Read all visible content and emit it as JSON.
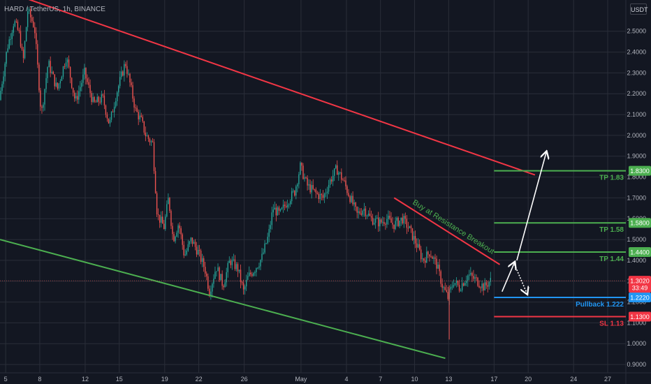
{
  "header": {
    "symbol": "HARD / TetherUS, 1h, BINANCE",
    "currency": "USDT"
  },
  "colors": {
    "background": "#131722",
    "grid": "#2a2e39",
    "up": "#26a69a",
    "down": "#ef5350",
    "resistance": "#f23645",
    "support": "#4caf50",
    "tp": "#4caf50",
    "sl": "#f23645",
    "pullback": "#2196f3",
    "arrow": "#ffffff",
    "price_tag": "#f23645",
    "axis_text": "#b2b5be"
  },
  "chart_data": {
    "type": "candlestick",
    "title": "HARD / TetherUS, 1h, BINANCE",
    "y_ticks": [
      "2.5000",
      "2.4000",
      "2.3000",
      "2.2000",
      "2.1000",
      "2.0000",
      "1.9000",
      "1.8000",
      "1.7000",
      "1.6000",
      "1.5000",
      "1.4000",
      "1.3000",
      "1.2000",
      "1.1000",
      "1.0000",
      "0.9000"
    ],
    "ylim": [
      0.86,
      2.65
    ],
    "x_ticks": [
      {
        "label": "5",
        "day": 5
      },
      {
        "label": "8",
        "day": 8
      },
      {
        "label": "12",
        "day": 12
      },
      {
        "label": "15",
        "day": 15
      },
      {
        "label": "19",
        "day": 19
      },
      {
        "label": "22",
        "day": 22
      },
      {
        "label": "26",
        "day": 26
      },
      {
        "label": "May",
        "day": 31
      },
      {
        "label": "4",
        "day": 35
      },
      {
        "label": "7",
        "day": 38
      },
      {
        "label": "10",
        "day": 41
      },
      {
        "label": "13",
        "day": 44
      },
      {
        "label": "17",
        "day": 48
      },
      {
        "label": "20",
        "day": 51
      },
      {
        "label": "24",
        "day": 55
      },
      {
        "label": "27",
        "day": 58
      }
    ],
    "xlim": [
      4.5,
      59.6
    ],
    "price_path": [
      [
        4.5,
        2.17
      ],
      [
        5.2,
        2.42
      ],
      [
        5.8,
        2.55
      ],
      [
        6.3,
        2.48
      ],
      [
        6.6,
        2.35
      ],
      [
        7.0,
        2.6
      ],
      [
        7.6,
        2.52
      ],
      [
        8.2,
        2.1
      ],
      [
        8.8,
        2.35
      ],
      [
        9.6,
        2.22
      ],
      [
        10.4,
        2.38
      ],
      [
        11.2,
        2.16
      ],
      [
        12.0,
        2.3
      ],
      [
        12.8,
        2.15
      ],
      [
        13.6,
        2.18
      ],
      [
        14.2,
        2.05
      ],
      [
        14.8,
        2.2
      ],
      [
        15.6,
        2.35
      ],
      [
        16.0,
        2.25
      ],
      [
        16.5,
        2.12
      ],
      [
        17.0,
        2.07
      ],
      [
        17.4,
        2.0
      ],
      [
        18.0,
        1.96
      ],
      [
        18.4,
        1.62
      ],
      [
        19.0,
        1.56
      ],
      [
        19.4,
        1.7
      ],
      [
        19.8,
        1.5
      ],
      [
        20.3,
        1.58
      ],
      [
        20.8,
        1.42
      ],
      [
        21.4,
        1.5
      ],
      [
        22.0,
        1.44
      ],
      [
        22.6,
        1.36
      ],
      [
        23.0,
        1.25
      ],
      [
        23.6,
        1.37
      ],
      [
        24.2,
        1.28
      ],
      [
        24.8,
        1.4
      ],
      [
        25.5,
        1.36
      ],
      [
        26.0,
        1.25
      ],
      [
        26.4,
        1.32
      ],
      [
        27.0,
        1.36
      ],
      [
        27.6,
        1.41
      ],
      [
        28.2,
        1.52
      ],
      [
        28.6,
        1.65
      ],
      [
        29.2,
        1.62
      ],
      [
        29.8,
        1.68
      ],
      [
        30.5,
        1.73
      ],
      [
        31.0,
        1.85
      ],
      [
        31.6,
        1.76
      ],
      [
        32.4,
        1.72
      ],
      [
        33.0,
        1.7
      ],
      [
        33.6,
        1.78
      ],
      [
        34.2,
        1.84
      ],
      [
        34.8,
        1.78
      ],
      [
        35.4,
        1.7
      ],
      [
        36.0,
        1.62
      ],
      [
        36.6,
        1.65
      ],
      [
        37.2,
        1.6
      ],
      [
        38.0,
        1.58
      ],
      [
        38.6,
        1.6
      ],
      [
        39.2,
        1.57
      ],
      [
        40.0,
        1.6
      ],
      [
        40.6,
        1.55
      ],
      [
        41.2,
        1.48
      ],
      [
        41.8,
        1.4
      ],
      [
        42.4,
        1.44
      ],
      [
        43.0,
        1.38
      ],
      [
        43.5,
        1.28
      ],
      [
        44.0,
        1.22
      ],
      [
        44.5,
        1.3
      ],
      [
        45.0,
        1.27
      ],
      [
        45.8,
        1.33
      ],
      [
        46.6,
        1.3
      ],
      [
        47.2,
        1.27
      ],
      [
        47.7,
        1.302
      ]
    ],
    "resistance_channel": [
      [
        5.6,
        2.68
      ],
      [
        51.6,
        1.81
      ]
    ],
    "support_channel": [
      [
        4.5,
        1.5
      ],
      [
        43.7,
        0.93
      ]
    ],
    "local_resistance": [
      [
        39.2,
        1.7
      ],
      [
        48.5,
        1.38
      ]
    ],
    "levels": [
      {
        "name": "TP 1.83",
        "value": 1.83,
        "tag": "1.8300",
        "role": "tp",
        "from": 48.0
      },
      {
        "name": "TP 1.58",
        "value": 1.58,
        "tag": "1.5800",
        "role": "tp",
        "from": 48.0
      },
      {
        "name": "TP 1.44",
        "value": 1.44,
        "tag": "1.4400",
        "role": "tp",
        "from": 48.0
      },
      {
        "name": "Pullback 1.222",
        "value": 1.222,
        "tag": "1.2220",
        "role": "pullback",
        "from": 48.0
      },
      {
        "name": "SL 1.13",
        "value": 1.13,
        "tag": "1.1300",
        "role": "sl",
        "from": 48.0
      }
    ],
    "annotation": "Buy at Resistance Breakout",
    "current_price": {
      "tag": "1.3020",
      "value": 1.302,
      "countdown": "33:49"
    },
    "arrows": [
      {
        "from": [
          48.7,
          1.25
        ],
        "to": [
          49.8,
          1.39
        ],
        "style": "solid"
      },
      {
        "from": [
          50.0,
          1.4
        ],
        "to": [
          52.6,
          1.92
        ],
        "style": "solid"
      },
      {
        "from": [
          49.8,
          1.38
        ],
        "to": [
          50.9,
          1.24
        ],
        "style": "dotted"
      }
    ]
  }
}
